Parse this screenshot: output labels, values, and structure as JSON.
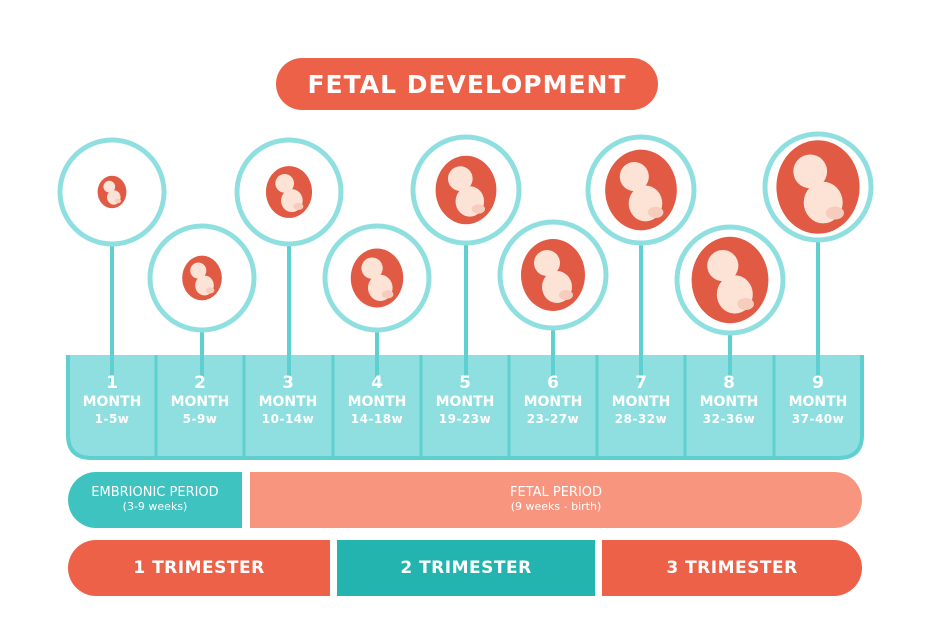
{
  "title": "FETAL DEVELOPMENT",
  "months": [
    {
      "number": "1",
      "word": "MONTH",
      "range": "1-5w"
    },
    {
      "number": "2",
      "word": "MONTH",
      "range": "5-9w"
    },
    {
      "number": "3",
      "word": "MONTH",
      "range": "10-14w"
    },
    {
      "number": "4",
      "word": "MONTH",
      "range": "14-18w"
    },
    {
      "number": "5",
      "word": "MONTH",
      "range": "19-23w"
    },
    {
      "number": "6",
      "word": "MONTH",
      "range": "23-27w"
    },
    {
      "number": "7",
      "word": "MONTH",
      "range": "28-32w"
    },
    {
      "number": "8",
      "word": "MONTH",
      "range": "32-36w"
    },
    {
      "number": "9",
      "word": "MONTH",
      "range": "37-40w"
    }
  ],
  "periods": {
    "embryonic": {
      "label": "EMBRIONIC PERIOD",
      "sub": "(3-9 weeks)"
    },
    "fetal": {
      "label": "FETAL PERIOD",
      "sub": "(9 weeks - birth)"
    }
  },
  "trimesters": [
    "1 TRIMESTER",
    "2 TRIMESTER",
    "3 TRIMESTER"
  ],
  "colors": {
    "teal": "#5fd0cf",
    "teal_light": "#8fdfe0",
    "coral": "#ee6149",
    "salmon": "#f8957f",
    "fetus_red": "#e05a44",
    "fetus_skin": "#fde3d6"
  }
}
